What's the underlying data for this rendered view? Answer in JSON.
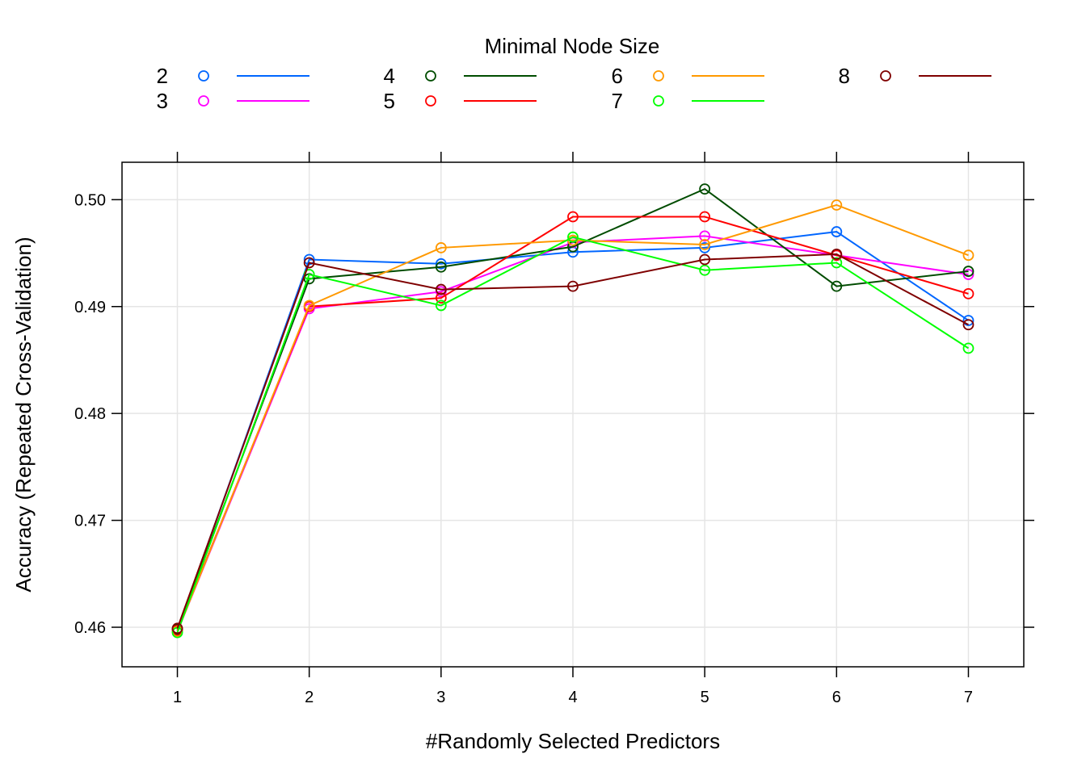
{
  "chart_data": {
    "type": "line",
    "xlabel": "#Randomly Selected Predictors",
    "ylabel": "Accuracy (Repeated Cross-Validation)",
    "xlim": [
      0.58,
      7.42
    ],
    "ylim": [
      0.4563,
      0.5035
    ],
    "x": [
      1,
      2,
      3,
      4,
      5,
      6,
      7
    ],
    "x_tick_labels": [
      "1",
      "2",
      "3",
      "4",
      "5",
      "6",
      "7"
    ],
    "y_ticks": [
      0.46,
      0.47,
      0.48,
      0.49,
      0.5
    ],
    "y_tick_labels": [
      "0.46",
      "0.47",
      "0.48",
      "0.49",
      "0.50"
    ],
    "grid": true,
    "legend": {
      "title": "Minimal Node Size",
      "placement": "top",
      "columns": 4
    },
    "series": [
      {
        "name": "2",
        "color": "#0066FF",
        "values": [
          0.4598,
          0.4944,
          0.494,
          0.4951,
          0.4955,
          0.497,
          0.4887
        ]
      },
      {
        "name": "3",
        "color": "#FF00FF",
        "values": [
          0.4596,
          0.4898,
          0.4914,
          0.496,
          0.4966,
          0.4948,
          0.493
        ]
      },
      {
        "name": "4",
        "color": "#004C00",
        "values": [
          0.4598,
          0.4926,
          0.4937,
          0.4956,
          0.501,
          0.4919,
          0.4933
        ]
      },
      {
        "name": "5",
        "color": "#FF0000",
        "values": [
          0.4597,
          0.49,
          0.4908,
          0.4984,
          0.4984,
          0.4948,
          0.4912
        ]
      },
      {
        "name": "6",
        "color": "#FF9900",
        "values": [
          0.4596,
          0.4901,
          0.4955,
          0.4962,
          0.4958,
          0.4995,
          0.4948
        ]
      },
      {
        "name": "7",
        "color": "#00FF00",
        "values": [
          0.4595,
          0.493,
          0.4901,
          0.4965,
          0.4934,
          0.4941,
          0.4861
        ]
      },
      {
        "name": "8",
        "color": "#7F0000",
        "values": [
          0.4599,
          0.4941,
          0.4916,
          0.4919,
          0.4944,
          0.4949,
          0.4883
        ]
      }
    ]
  }
}
